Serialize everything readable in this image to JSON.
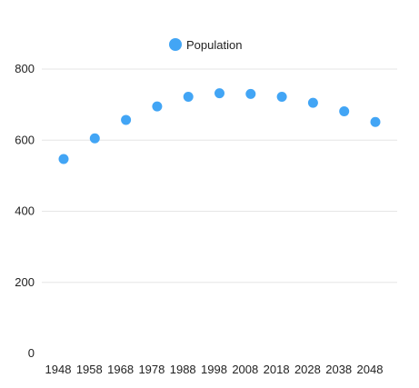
{
  "chart_data": {
    "type": "scatter",
    "x": [
      "1948",
      "1958",
      "1968",
      "1978",
      "1988",
      "1998",
      "2008",
      "2018",
      "2028",
      "2038",
      "2048"
    ],
    "series": [
      {
        "name": "Population",
        "values": [
          547,
          605,
          657,
          695,
          722,
          732,
          730,
          722,
          705,
          681,
          651
        ]
      }
    ],
    "ylim": [
      0,
      800
    ],
    "yticks": [
      0,
      200,
      400,
      600,
      800
    ],
    "grid": true,
    "legend_position": "top-center",
    "colors": {
      "series": "#42a5f5",
      "grid": "#e6e6e6",
      "text": "#222222"
    }
  }
}
